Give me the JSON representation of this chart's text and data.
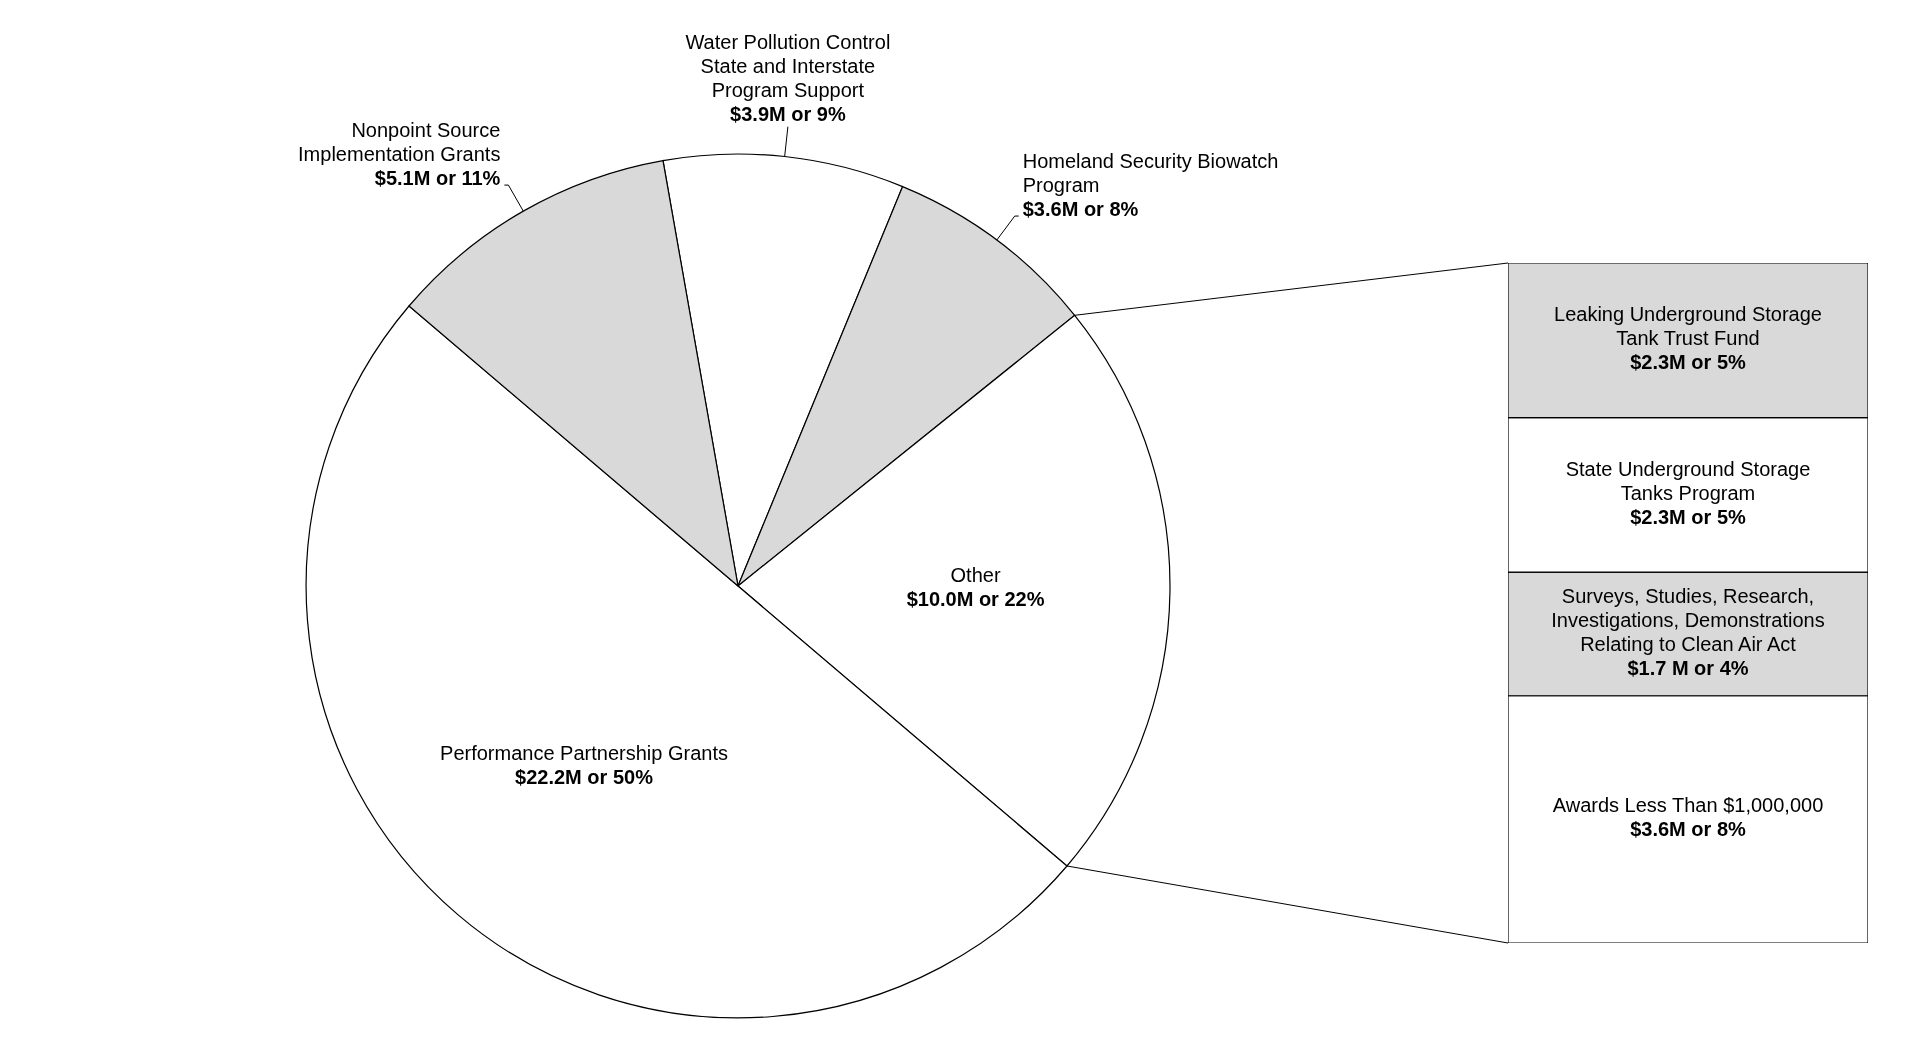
{
  "chart_data": [
    {
      "type": "pie",
      "categories": [
        "Water Pollution Control State and Interstate Program Support",
        "Homeland Security Biowatch Program",
        "Other",
        "Performance Partnership Grants",
        "Nonpoint Source Implementation Grants"
      ],
      "values": [
        9,
        8,
        22,
        50,
        11
      ],
      "colors": [
        "#ffffff",
        "#d9d9d9",
        "#ffffff",
        "#ffffff",
        "#d9d9d9"
      ],
      "value_labels": [
        "$3.9M or 9%",
        "$3.6M or 8%",
        "$10.0M or 22%",
        "$22.2M or 50%",
        "$5.1M or 11%"
      ]
    },
    {
      "type": "bar",
      "stacked": true,
      "categories": [
        null
      ],
      "series": [
        {
          "name": "Awards Less Than $1,000,000",
          "color": "#ffffff",
          "values": [
            8
          ],
          "value_labels": [
            "$3.6M or 8%"
          ]
        },
        {
          "name": "Surveys, Studies, Research, Investigations, Demonstrations Relating to Clean Air Act",
          "color": "#d9d9d9",
          "values": [
            4
          ],
          "value_labels": [
            "$1.7 M or 4%"
          ]
        },
        {
          "name": "State Underground Storage Tanks Program",
          "color": "#ffffff",
          "values": [
            5
          ],
          "value_labels": [
            "$2.3M or 5%"
          ]
        },
        {
          "name": "Leaking Underground Storage Tank Trust Fund",
          "color": "#d9d9d9",
          "values": [
            5
          ],
          "value_labels": [
            "$2.3M or 5%"
          ]
        }
      ]
    }
  ]
}
